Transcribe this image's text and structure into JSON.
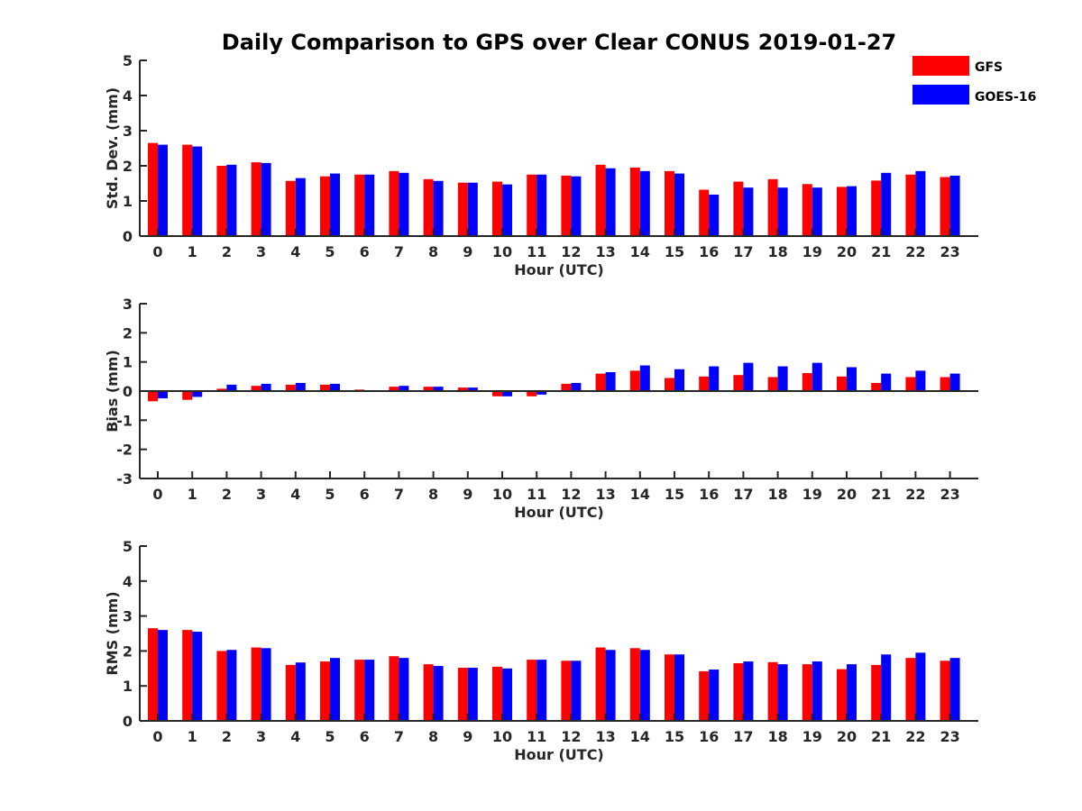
{
  "colors": {
    "gfs": "#ff0000",
    "goes": "#0000ff",
    "axis": "#262626",
    "background": "#ffffff"
  },
  "chart_data": {
    "type": "bar",
    "title": "Daily Comparison to GPS over Clear CONUS 2019-01-27",
    "legend": {
      "position": "top-right",
      "entries": [
        "GFS",
        "GOES-16"
      ]
    },
    "categories": [
      "0",
      "1",
      "2",
      "3",
      "4",
      "5",
      "6",
      "7",
      "8",
      "9",
      "10",
      "11",
      "12",
      "13",
      "14",
      "15",
      "16",
      "17",
      "18",
      "19",
      "20",
      "21",
      "22",
      "23"
    ],
    "panels": [
      {
        "key": "std",
        "ylabel": "Std. Dev. (mm)",
        "xlabel": "Hour (UTC)",
        "ylim": [
          0,
          5
        ],
        "yticks": [
          "0",
          "1",
          "2",
          "3",
          "4",
          "5"
        ],
        "grid": false,
        "series": [
          {
            "name": "GFS",
            "values": [
              2.65,
              2.6,
              2.0,
              2.1,
              1.57,
              1.7,
              1.75,
              1.85,
              1.62,
              1.52,
              1.55,
              1.75,
              1.72,
              2.03,
              1.95,
              1.85,
              1.32,
              1.55,
              1.62,
              1.48,
              1.4,
              1.58,
              1.75,
              1.68
            ]
          },
          {
            "name": "GOES-16",
            "values": [
              2.6,
              2.55,
              2.03,
              2.08,
              1.65,
              1.78,
              1.75,
              1.8,
              1.57,
              1.52,
              1.47,
              1.75,
              1.7,
              1.93,
              1.85,
              1.78,
              1.18,
              1.38,
              1.38,
              1.38,
              1.42,
              1.8,
              1.85,
              1.72
            ]
          }
        ]
      },
      {
        "key": "bias",
        "ylabel": "Bias (mm)",
        "xlabel": "Hour (UTC)",
        "ylim": [
          -3,
          3
        ],
        "yticks": [
          "-3",
          "-2",
          "-1",
          "0",
          "1",
          "2",
          "3"
        ],
        "grid": false,
        "series": [
          {
            "name": "GFS",
            "values": [
              -0.35,
              -0.3,
              0.08,
              0.18,
              0.22,
              0.22,
              0.05,
              0.15,
              0.15,
              0.12,
              -0.18,
              -0.18,
              0.25,
              0.6,
              0.7,
              0.45,
              0.5,
              0.55,
              0.48,
              0.62,
              0.5,
              0.28,
              0.48,
              0.48
            ]
          },
          {
            "name": "GOES-16",
            "values": [
              -0.25,
              -0.2,
              0.22,
              0.25,
              0.28,
              0.25,
              0.02,
              0.18,
              0.15,
              0.12,
              -0.18,
              -0.12,
              0.28,
              0.65,
              0.88,
              0.75,
              0.85,
              0.97,
              0.85,
              0.97,
              0.82,
              0.6,
              0.7,
              0.6
            ]
          }
        ]
      },
      {
        "key": "rms",
        "ylabel": "RMS (mm)",
        "xlabel": "Hour (UTC)",
        "ylim": [
          0,
          5
        ],
        "yticks": [
          "0",
          "1",
          "2",
          "3",
          "4",
          "5"
        ],
        "grid": false,
        "series": [
          {
            "name": "GFS",
            "values": [
              2.65,
              2.6,
              2.0,
              2.1,
              1.6,
              1.7,
              1.75,
              1.85,
              1.62,
              1.52,
              1.55,
              1.75,
              1.72,
              2.1,
              2.08,
              1.9,
              1.42,
              1.65,
              1.68,
              1.62,
              1.48,
              1.6,
              1.8,
              1.72
            ]
          },
          {
            "name": "GOES-16",
            "values": [
              2.6,
              2.55,
              2.03,
              2.08,
              1.67,
              1.8,
              1.75,
              1.8,
              1.57,
              1.52,
              1.5,
              1.75,
              1.72,
              2.03,
              2.03,
              1.9,
              1.47,
              1.7,
              1.62,
              1.7,
              1.62,
              1.9,
              1.95,
              1.8
            ]
          }
        ]
      }
    ]
  }
}
